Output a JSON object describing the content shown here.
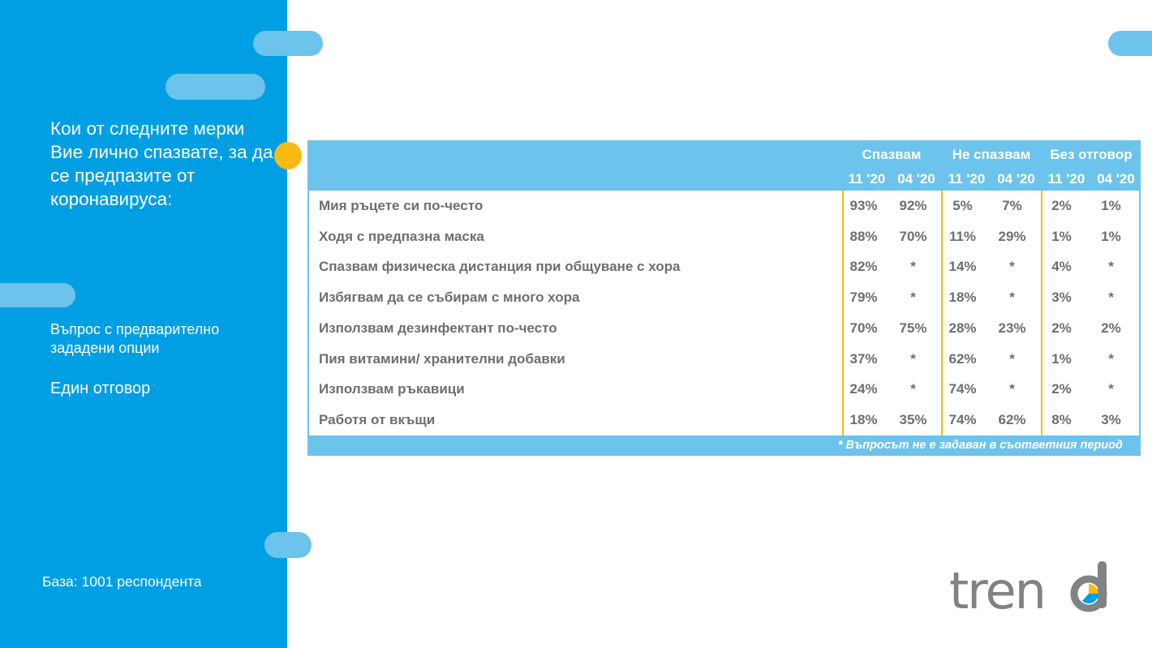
{
  "sidebar": {
    "question": "Кои от следните мерки Вие лично спазвате, за да се предпазите от коронавируса:",
    "subnote": "Въпрос с предварително зададени опции",
    "answer_type": "Един отговор",
    "base": "База: 1001 респондента"
  },
  "colors": {
    "sidebar": "#009fe3",
    "accent_pill": "#6cc3eb",
    "header": "#6cc3eb",
    "separator": "#fbb914",
    "text": "#6d6e71"
  },
  "logo": {
    "text": "trend"
  },
  "chart_data": {
    "type": "table",
    "groups": [
      "Спазвам",
      "Не спазвам",
      "Без отговор"
    ],
    "periods": [
      "11 '20",
      "04 '20",
      "11 '20",
      "04 '20",
      "11 '20",
      "04 '20"
    ],
    "rows": [
      {
        "label": "Мия ръцете си по-често",
        "values": [
          "93%",
          "92%",
          "5%",
          "7%",
          "2%",
          "1%"
        ]
      },
      {
        "label": "Ходя с предпазна маска",
        "values": [
          "88%",
          "70%",
          "11%",
          "29%",
          "1%",
          "1%"
        ]
      },
      {
        "label": "Спазвам физическа дистанция при общуване с хора",
        "values": [
          "82%",
          "*",
          "14%",
          "*",
          "4%",
          "*"
        ]
      },
      {
        "label": "Избягвам да се събирам с много хора",
        "values": [
          "79%",
          "*",
          "18%",
          "*",
          "3%",
          "*"
        ]
      },
      {
        "label": "Използвам дезинфектант по-често",
        "values": [
          "70%",
          "75%",
          "28%",
          "23%",
          "2%",
          "2%"
        ]
      },
      {
        "label": "Пия витамини/ хранителни добавки",
        "values": [
          "37%",
          "*",
          "62%",
          "*",
          "1%",
          "*"
        ]
      },
      {
        "label": "Използвам ръкавици",
        "values": [
          "24%",
          "*",
          "74%",
          "*",
          "2%",
          "*"
        ]
      },
      {
        "label": "Работя от вкъщи",
        "values": [
          "18%",
          "35%",
          "74%",
          "62%",
          "8%",
          "3%"
        ]
      }
    ],
    "footnote": "*  Въпросът не е задаван в съответния период"
  }
}
